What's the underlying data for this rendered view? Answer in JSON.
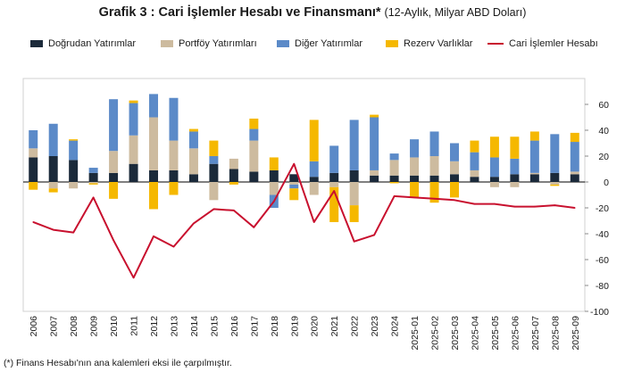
{
  "header": {
    "title": "Grafik 3 : Cari İşlemler Hesabı ve Finansmanı*",
    "subtitle": "(12-Aylık, Milyar ABD Doları)"
  },
  "legend": [
    {
      "label": "Doğrudan Yatırımlar",
      "color": "#1b2a3a",
      "kind": "bar"
    },
    {
      "label": "Portföy Yatırımları",
      "color": "#cdbb9f",
      "kind": "bar"
    },
    {
      "label": "Diğer Yatırımlar",
      "color": "#5b8ac8",
      "kind": "bar"
    },
    {
      "label": "Rezerv Varlıklar",
      "color": "#f5b800",
      "kind": "bar"
    },
    {
      "label": "Cari İşlemler Hesabı",
      "color": "#c8102e",
      "kind": "line"
    }
  ],
  "note": "(*) Finans Hesabı'nın ana kalemleri eksi ile çarpılmıştır.",
  "chart_data": {
    "type": "bar",
    "stacked": true,
    "categories": [
      "2006",
      "2007",
      "2008",
      "2009",
      "2010",
      "2011",
      "2012",
      "2013",
      "2014",
      "2015",
      "2016",
      "2017",
      "2018",
      "2019",
      "2020",
      "2021",
      "2022",
      "2023",
      "2024",
      "2025-01",
      "2025-02",
      "2025-03",
      "2025-04",
      "2025-05",
      "2025-06",
      "2025-07",
      "2025-08",
      "2025-09"
    ],
    "ylim": [
      -100,
      80
    ],
    "yticks": [
      -100,
      -80,
      -60,
      -40,
      -20,
      0,
      20,
      40,
      60
    ],
    "grid": false,
    "legend_position": "top",
    "series": [
      {
        "name": "Doğrudan Yatırımlar",
        "color": "#1b2a3a",
        "values": [
          19,
          20,
          17,
          7,
          7,
          14,
          9,
          9,
          6,
          14,
          10,
          8,
          9,
          6,
          4,
          7,
          9,
          5,
          5,
          5,
          5,
          6,
          4,
          4,
          6,
          6,
          7,
          6
        ]
      },
      {
        "name": "Portföy Yatırımları",
        "color": "#cdbb9f",
        "values": [
          7,
          -5,
          -5,
          -1,
          17,
          22,
          41,
          23,
          20,
          -14,
          8,
          24,
          -10,
          -2,
          -10,
          -4,
          -18,
          4,
          12,
          14,
          15,
          10,
          5,
          -4,
          -4,
          1,
          -2,
          2
        ]
      },
      {
        "name": "Diğer Yatırımlar",
        "color": "#5b8ac8",
        "values": [
          14,
          25,
          15,
          4,
          40,
          25,
          18,
          33,
          13,
          6,
          0,
          9,
          -10,
          -3,
          12,
          21,
          39,
          41,
          5,
          14,
          19,
          14,
          14,
          15,
          12,
          25,
          30,
          23
        ]
      },
      {
        "name": "Rezerv Varlıklar",
        "color": "#f5b800",
        "values": [
          -6,
          -3,
          1,
          -1,
          -13,
          2,
          -21,
          -10,
          2,
          12,
          -2,
          8,
          10,
          -9,
          32,
          -27,
          -13,
          2,
          -1,
          -12,
          -16,
          -12,
          9,
          16,
          17,
          7,
          -1,
          7
        ]
      },
      {
        "name": "Cari İşlemler Hesabı",
        "type": "line",
        "color": "#c8102e",
        "values": [
          -31,
          -37,
          -39,
          -12,
          -45,
          -74,
          -42,
          -50,
          -32,
          -21,
          -22,
          -35,
          -15,
          14,
          -31,
          -7,
          -46,
          -41,
          -11,
          -12,
          -13,
          -14,
          -17,
          -17,
          -19,
          -19,
          -18,
          -20
        ]
      }
    ]
  }
}
